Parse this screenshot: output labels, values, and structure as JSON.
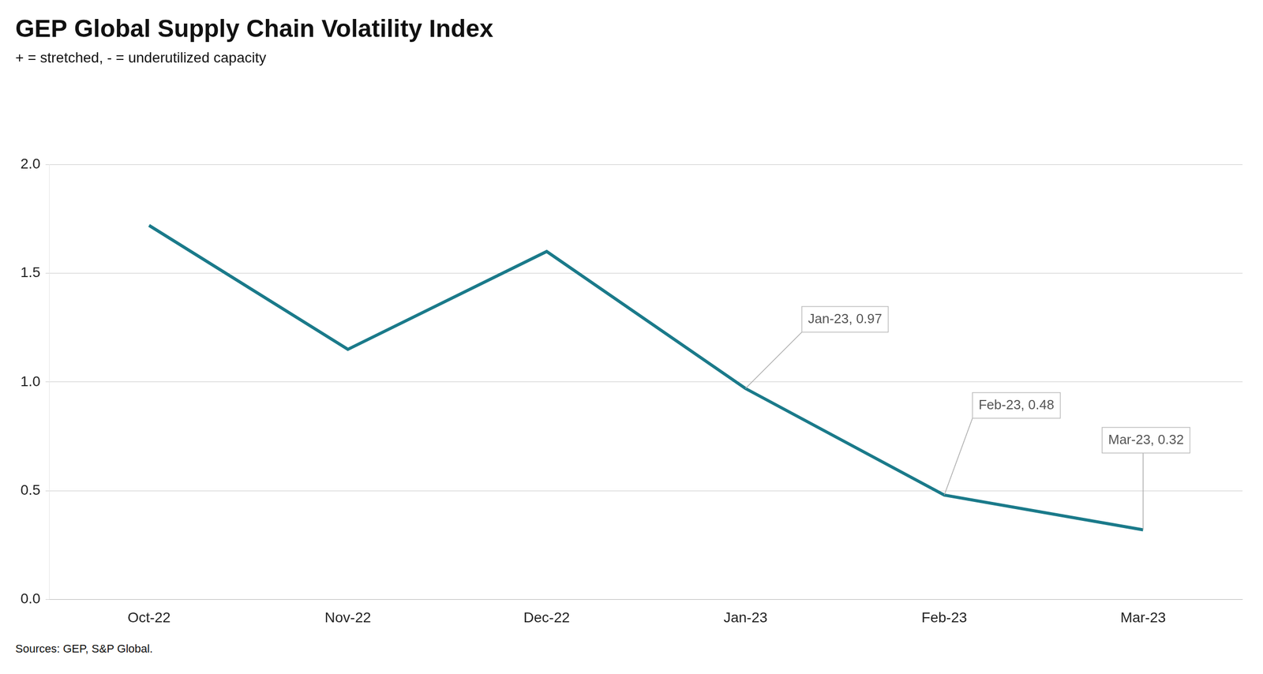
{
  "chart_data": {
    "type": "line",
    "title": "GEP Global Supply Chain Volatility Index",
    "subtitle": "+ = stretched, - = underutilized capacity",
    "source": "Sources: GEP, S&P Global.",
    "categories": [
      "Oct-22",
      "Nov-22",
      "Dec-22",
      "Jan-23",
      "Feb-23",
      "Mar-23"
    ],
    "values": [
      1.72,
      1.15,
      1.6,
      0.97,
      0.48,
      0.32
    ],
    "color": "#1a7a8a",
    "ylim": [
      0.0,
      2.0
    ],
    "yticks": [
      {
        "value": 0,
        "label": "0.0"
      },
      0.5,
      {
        "value": 1,
        "label": "1.0"
      },
      1.5,
      {
        "value": 2,
        "label": "2.0"
      }
    ],
    "grid": true,
    "annotations": [
      {
        "label": "Jan-23, 0.97",
        "x": "Jan-23",
        "y": 0.97
      },
      {
        "label": "Feb-23, 0.48",
        "x": "Feb-23",
        "y": 0.48
      },
      {
        "label": "Mar-23, 0.32",
        "x": "Mar-23",
        "y": 0.32
      }
    ]
  }
}
